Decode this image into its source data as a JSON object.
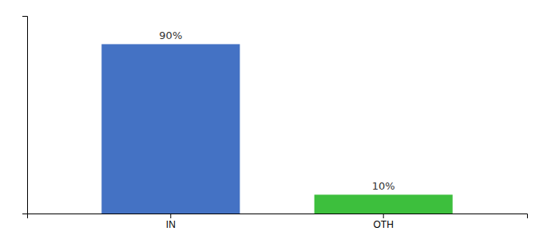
{
  "chart_data": {
    "type": "bar",
    "categories": [
      "IN",
      "OTH"
    ],
    "values": [
      90,
      10
    ],
    "value_labels": [
      "90%",
      "10%"
    ],
    "colors": [
      "#4472C4",
      "#3DBF3D"
    ],
    "ylim": [
      0,
      105
    ],
    "data_labels": true,
    "tick_labels": "x"
  }
}
